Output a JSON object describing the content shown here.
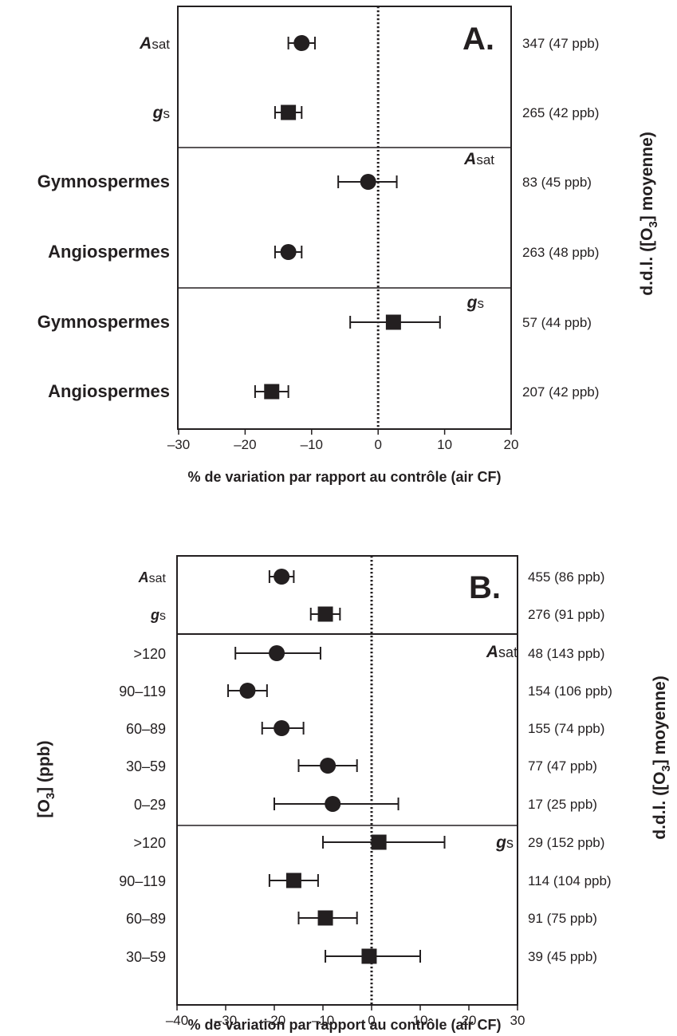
{
  "chart_data": [
    {
      "type": "forest",
      "panel_label": "A.",
      "xlabel": "% de variation par rapport au contrôle (air CF)",
      "right_axis_label": "d.d.l. ([O3] moyenne)",
      "xlim": [
        -30,
        20
      ],
      "xticks": [
        -30,
        -20,
        -10,
        0,
        10,
        20
      ],
      "tick_labels": [
        "–30",
        "–20",
        "–10",
        "0",
        "10",
        "20"
      ],
      "reference_line": 0,
      "section_labels": [
        "",
        "Asat",
        "gs"
      ],
      "rows": [
        {
          "label_main": "A",
          "label_sub": "sat",
          "marker": "circle",
          "estimate": -11.5,
          "ci": [
            -13.5,
            -9.5
          ],
          "dof": "347 (47 ppb)",
          "section": 0
        },
        {
          "label_main": "g",
          "label_sub": "s",
          "marker": "square",
          "estimate": -13.5,
          "ci": [
            -15.5,
            -11.5
          ],
          "dof": "265 (42 ppb)",
          "section": 0
        },
        {
          "label_main": "Gymnospermes",
          "label_sub": "",
          "marker": "circle",
          "estimate": -1.5,
          "ci": [
            -6.0,
            2.8
          ],
          "dof": "83 (45 ppb)",
          "section": 1
        },
        {
          "label_main": "Angiospermes",
          "label_sub": "",
          "marker": "circle",
          "estimate": -13.5,
          "ci": [
            -15.5,
            -11.5
          ],
          "dof": "263 (48 ppb)",
          "section": 1
        },
        {
          "label_main": "Gymnospermes",
          "label_sub": "",
          "marker": "square",
          "estimate": 2.3,
          "ci": [
            -4.2,
            9.3
          ],
          "dof": "57 (44 ppb)",
          "section": 2
        },
        {
          "label_main": "Angiospermes",
          "label_sub": "",
          "marker": "square",
          "estimate": -16.0,
          "ci": [
            -18.5,
            -13.5
          ],
          "dof": "207 (42 ppb)",
          "section": 2
        }
      ]
    },
    {
      "type": "forest",
      "panel_label": "B.",
      "xlabel": "% de variation par rapport au contrôle (air CF)",
      "left_axis_label": "[O3] (ppb)",
      "right_axis_label": "d.d.l. ([O3] moyenne)",
      "xlim": [
        -40,
        30
      ],
      "xticks": [
        -40,
        -30,
        -20,
        -10,
        0,
        10,
        20,
        30
      ],
      "tick_labels": [
        "–40",
        "–30",
        "–20",
        "–10",
        "0",
        "10",
        "20",
        "30"
      ],
      "reference_line": 0,
      "section_labels": [
        "",
        "Asat",
        "gs"
      ],
      "rows": [
        {
          "label_main": "A",
          "label_sub": "sat",
          "marker": "circle",
          "estimate": -18.5,
          "ci": [
            -21.0,
            -16.0
          ],
          "dof": "455 (86 ppb)",
          "section": 0
        },
        {
          "label_main": "g",
          "label_sub": "s",
          "marker": "square",
          "estimate": -9.5,
          "ci": [
            -12.5,
            -6.5
          ],
          "dof": "276 (91 ppb)",
          "section": 0
        },
        {
          "label_main": ">120",
          "label_sub": "",
          "marker": "circle",
          "estimate": -19.5,
          "ci": [
            -28.0,
            -10.5
          ],
          "dof": "48 (143 ppb)",
          "section": 1
        },
        {
          "label_main": "90–119",
          "label_sub": "",
          "marker": "circle",
          "estimate": -25.5,
          "ci": [
            -29.5,
            -21.5
          ],
          "dof": "154 (106 ppb)",
          "section": 1
        },
        {
          "label_main": "60–89",
          "label_sub": "",
          "marker": "circle",
          "estimate": -18.5,
          "ci": [
            -22.5,
            -14.0
          ],
          "dof": "155 (74 ppb)",
          "section": 1
        },
        {
          "label_main": "30–59",
          "label_sub": "",
          "marker": "circle",
          "estimate": -9.0,
          "ci": [
            -15.0,
            -3.0
          ],
          "dof": "77 (47 ppb)",
          "section": 1
        },
        {
          "label_main": "0–29",
          "label_sub": "",
          "marker": "circle",
          "estimate": -8.0,
          "ci": [
            -20.0,
            5.5
          ],
          "dof": "17 (25 ppb)",
          "section": 1
        },
        {
          "label_main": ">120",
          "label_sub": "",
          "marker": "square",
          "estimate": 1.5,
          "ci": [
            -10.0,
            15.0
          ],
          "dof": "29 (152 ppb)",
          "section": 2
        },
        {
          "label_main": "90–119",
          "label_sub": "",
          "marker": "square",
          "estimate": -16.0,
          "ci": [
            -21.0,
            -11.0
          ],
          "dof": "114 (104 ppb)",
          "section": 2
        },
        {
          "label_main": "60–89",
          "label_sub": "",
          "marker": "square",
          "estimate": -9.5,
          "ci": [
            -15.0,
            -3.0
          ],
          "dof": "91 (75 ppb)",
          "section": 2
        },
        {
          "label_main": "30–59",
          "label_sub": "",
          "marker": "square",
          "estimate": -0.5,
          "ci": [
            -9.5,
            10.0
          ],
          "dof": "39 (45 ppb)",
          "section": 2
        }
      ]
    }
  ]
}
